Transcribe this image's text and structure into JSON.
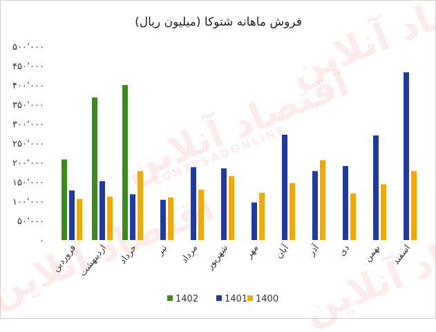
{
  "watermark": {
    "text": "اقتصاد آنلاین",
    "latin": "EGHTESADONLINE"
  },
  "chart_data": {
    "type": "bar",
    "title": "فروش ماهانه شتوکا (میلیون ریال)",
    "xlabel": "",
    "ylabel": "",
    "ylim": [
      0,
      500000
    ],
    "yticks": [
      0,
      50000,
      100000,
      150000,
      200000,
      250000,
      300000,
      350000,
      400000,
      450000,
      500000
    ],
    "ytick_labels": [
      "۰",
      "۵۰٬۰۰۰",
      "۱۰۰٬۰۰۰",
      "۱۵۰٬۰۰۰",
      "۲۰۰٬۰۰۰",
      "۲۵۰٬۰۰۰",
      "۳۰۰٬۰۰۰",
      "۳۵۰٬۰۰۰",
      "۴۰۰٬۰۰۰",
      "۴۵۰٬۰۰۰",
      "۵۰۰٬۰۰۰"
    ],
    "grid": false,
    "legend": "bottom",
    "categories": [
      "فروردین",
      "اردیبهشت",
      "خرداد",
      "تیر",
      "مرداد",
      "شهریور",
      "مهر",
      "آبان",
      "آذر",
      "دی",
      "بهمن",
      "اسفند"
    ],
    "series": [
      {
        "name": "1402",
        "color": "#3d8b1f",
        "values": [
          208000,
          368000,
          400000,
          null,
          null,
          null,
          null,
          null,
          null,
          null,
          null,
          null
        ]
      },
      {
        "name": "1401",
        "color": "#1f3b9e",
        "values": [
          128000,
          152000,
          118000,
          104000,
          188000,
          185000,
          97000,
          272000,
          178000,
          191000,
          270000,
          433000
        ]
      },
      {
        "name": "1400",
        "color": "#f5a800",
        "values": [
          106000,
          112000,
          178000,
          110000,
          130000,
          165000,
          122000,
          147000,
          206000,
          120000,
          144000,
          178000
        ]
      }
    ]
  }
}
